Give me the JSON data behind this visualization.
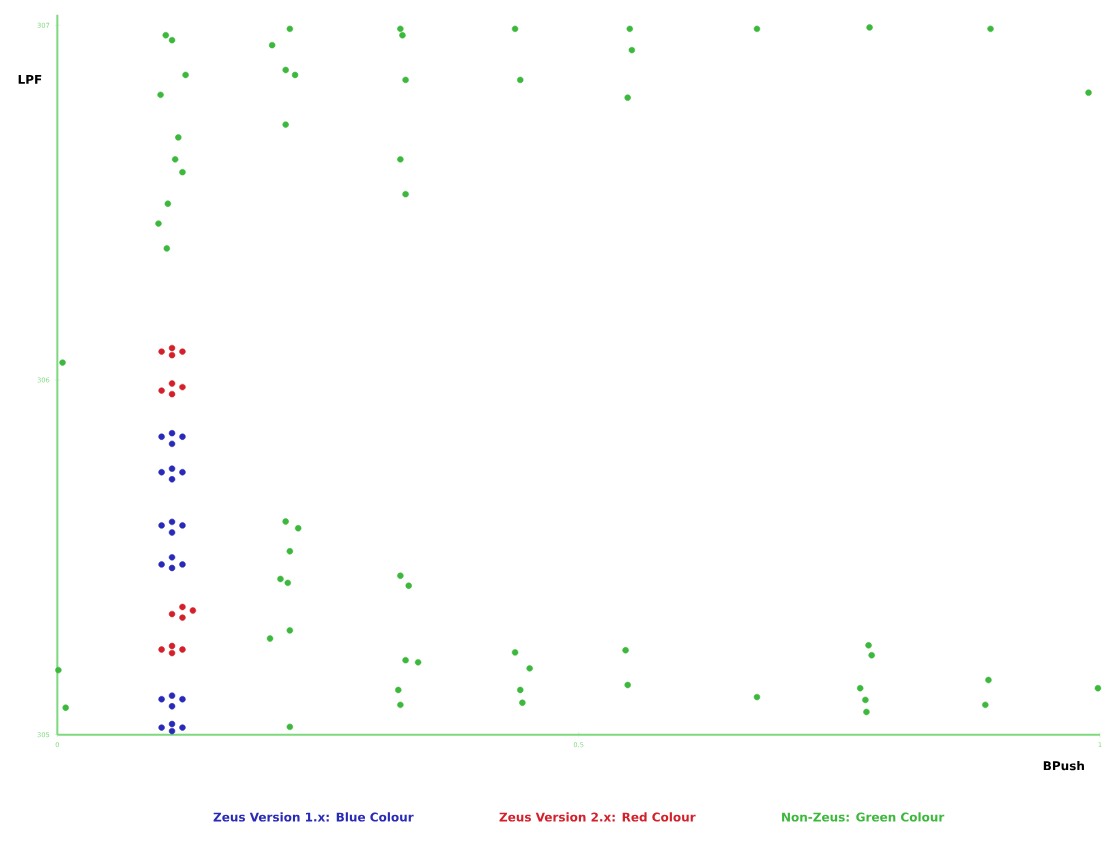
{
  "chart_data": {
    "type": "scatter",
    "xlabel": "BPush",
    "ylabel": "LPF",
    "xlim": [
      0,
      1
    ],
    "ylim": [
      305,
      307.03
    ],
    "xticks": [
      0,
      0.5,
      1
    ],
    "yticks": [
      305,
      306,
      307
    ],
    "legend": "bottom",
    "grid": false,
    "series": [
      {
        "name": "Zeus Version 1.x: Blue Colour",
        "color": "#2a2ab8",
        "x": [
          0.1,
          0.11,
          0.12,
          0.11,
          0.1,
          0.11,
          0.12,
          0.11,
          0.1,
          0.11,
          0.12,
          0.11,
          0.1,
          0.11,
          0.12,
          0.11,
          0.1,
          0.11,
          0.12,
          0.11,
          0.1,
          0.11,
          0.12,
          0.11
        ],
        "values": [
          305.84,
          305.82,
          305.84,
          305.85,
          305.74,
          305.72,
          305.74,
          305.75,
          305.59,
          305.57,
          305.59,
          305.6,
          305.48,
          305.47,
          305.48,
          305.5,
          305.1,
          305.08,
          305.1,
          305.11,
          305.02,
          305.01,
          305.02,
          305.03
        ]
      },
      {
        "name": "Zeus Version 2.x: Red Colour",
        "color": "#d4202a",
        "x": [
          0.1,
          0.11,
          0.12,
          0.11,
          0.1,
          0.11,
          0.12,
          0.11,
          0.11,
          0.12,
          0.13,
          0.12,
          0.1,
          0.11,
          0.12,
          0.11
        ],
        "values": [
          306.08,
          306.07,
          306.08,
          306.09,
          305.97,
          305.96,
          305.98,
          305.99,
          305.34,
          305.33,
          305.35,
          305.36,
          305.24,
          305.23,
          305.24,
          305.25
        ]
      },
      {
        "name": "Non-Zeus: Green Colour",
        "color": "#3cb83c",
        "x": [
          0.104,
          0.11,
          0.123,
          0.099,
          0.116,
          0.113,
          0.12,
          0.106,
          0.097,
          0.105,
          0.005,
          0.206,
          0.223,
          0.219,
          0.228,
          0.219,
          0.329,
          0.331,
          0.334,
          0.329,
          0.334,
          0.439,
          0.444,
          0.549,
          0.551,
          0.547,
          0.671,
          0.779,
          0.895,
          0.989,
          0.219,
          0.231,
          0.223,
          0.214,
          0.221,
          0.223,
          0.204,
          0.329,
          0.337,
          0.334,
          0.346,
          0.327,
          0.329,
          0.223,
          0.439,
          0.453,
          0.444,
          0.446,
          0.545,
          0.547,
          0.671,
          0.778,
          0.781,
          0.77,
          0.775,
          0.776,
          0.893,
          0.89,
          0.998,
          0.008,
          0.001
        ],
        "values": [
          306.972,
          306.958,
          306.86,
          306.804,
          306.684,
          306.622,
          306.586,
          306.497,
          306.441,
          306.371,
          306.049,
          306.944,
          306.99,
          306.874,
          306.86,
          306.72,
          306.99,
          306.972,
          306.846,
          306.622,
          306.524,
          306.99,
          306.846,
          306.99,
          306.93,
          306.796,
          306.99,
          306.994,
          306.99,
          306.81,
          305.601,
          305.582,
          305.517,
          305.439,
          305.428,
          305.294,
          305.271,
          305.448,
          305.42,
          305.21,
          305.204,
          305.126,
          305.084,
          305.022,
          305.232,
          305.187,
          305.126,
          305.09,
          305.238,
          305.14,
          305.106,
          305.252,
          305.224,
          305.131,
          305.098,
          305.064,
          305.154,
          305.084,
          305.131,
          305.076,
          305.182
        ]
      }
    ]
  }
}
